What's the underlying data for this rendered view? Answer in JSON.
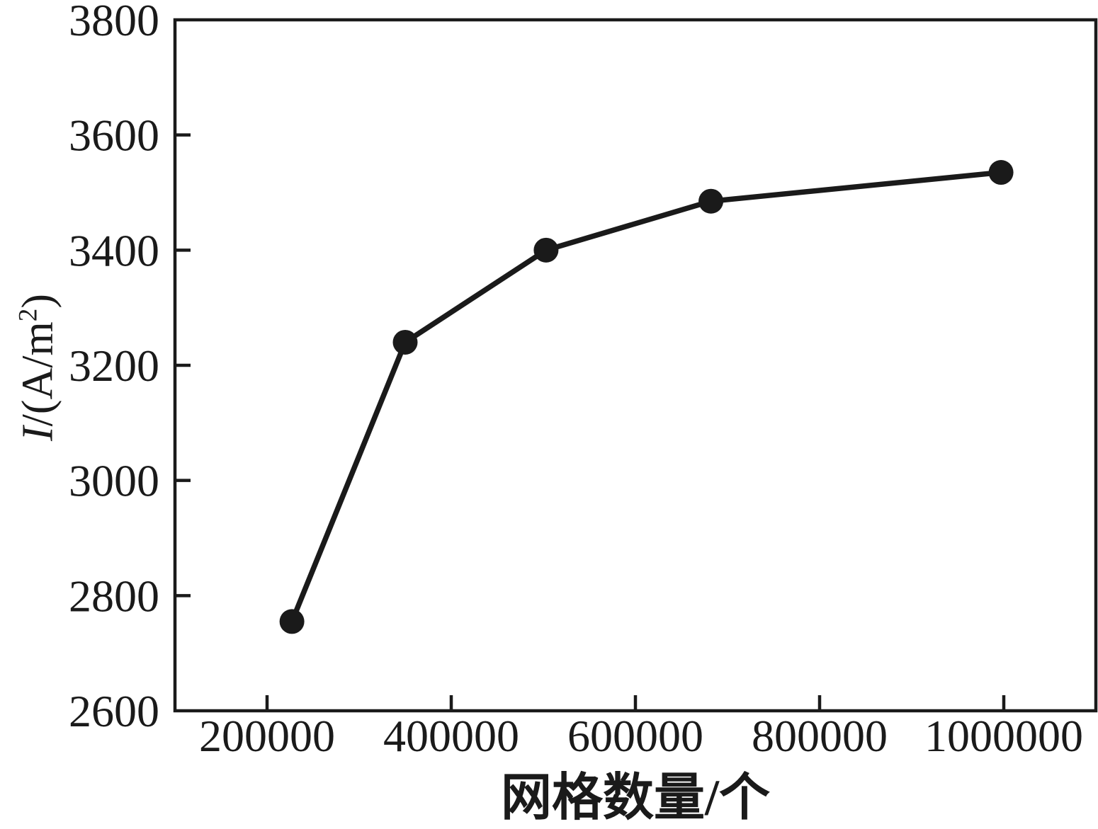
{
  "figure": {
    "background": "#ffffff",
    "ink_color": "#1a1a1a"
  },
  "chart_data": {
    "type": "line",
    "title": "",
    "xlabel": "网格数量/个",
    "ylabel": "I/(A/m²)",
    "ylabel_parts": {
      "variable": "I",
      "unit_prefix": "/(A/m",
      "unit_exponent": "2",
      "unit_suffix": ")"
    },
    "x": [
      227000,
      350000,
      503000,
      682000,
      997000
    ],
    "y": [
      2755,
      3240,
      3400,
      3485,
      3535
    ],
    "xlim": [
      100000,
      1100000
    ],
    "ylim": [
      2600,
      3800
    ],
    "xticks": [
      200000,
      400000,
      600000,
      800000,
      1000000
    ],
    "yticks": [
      2600,
      2800,
      3000,
      3200,
      3400,
      3600,
      3800
    ],
    "grid": false,
    "legend": null,
    "marker": "circle",
    "marker_color": "#1a1a1a",
    "line_color": "#1a1a1a",
    "frame": "box",
    "tick_direction": "in"
  }
}
